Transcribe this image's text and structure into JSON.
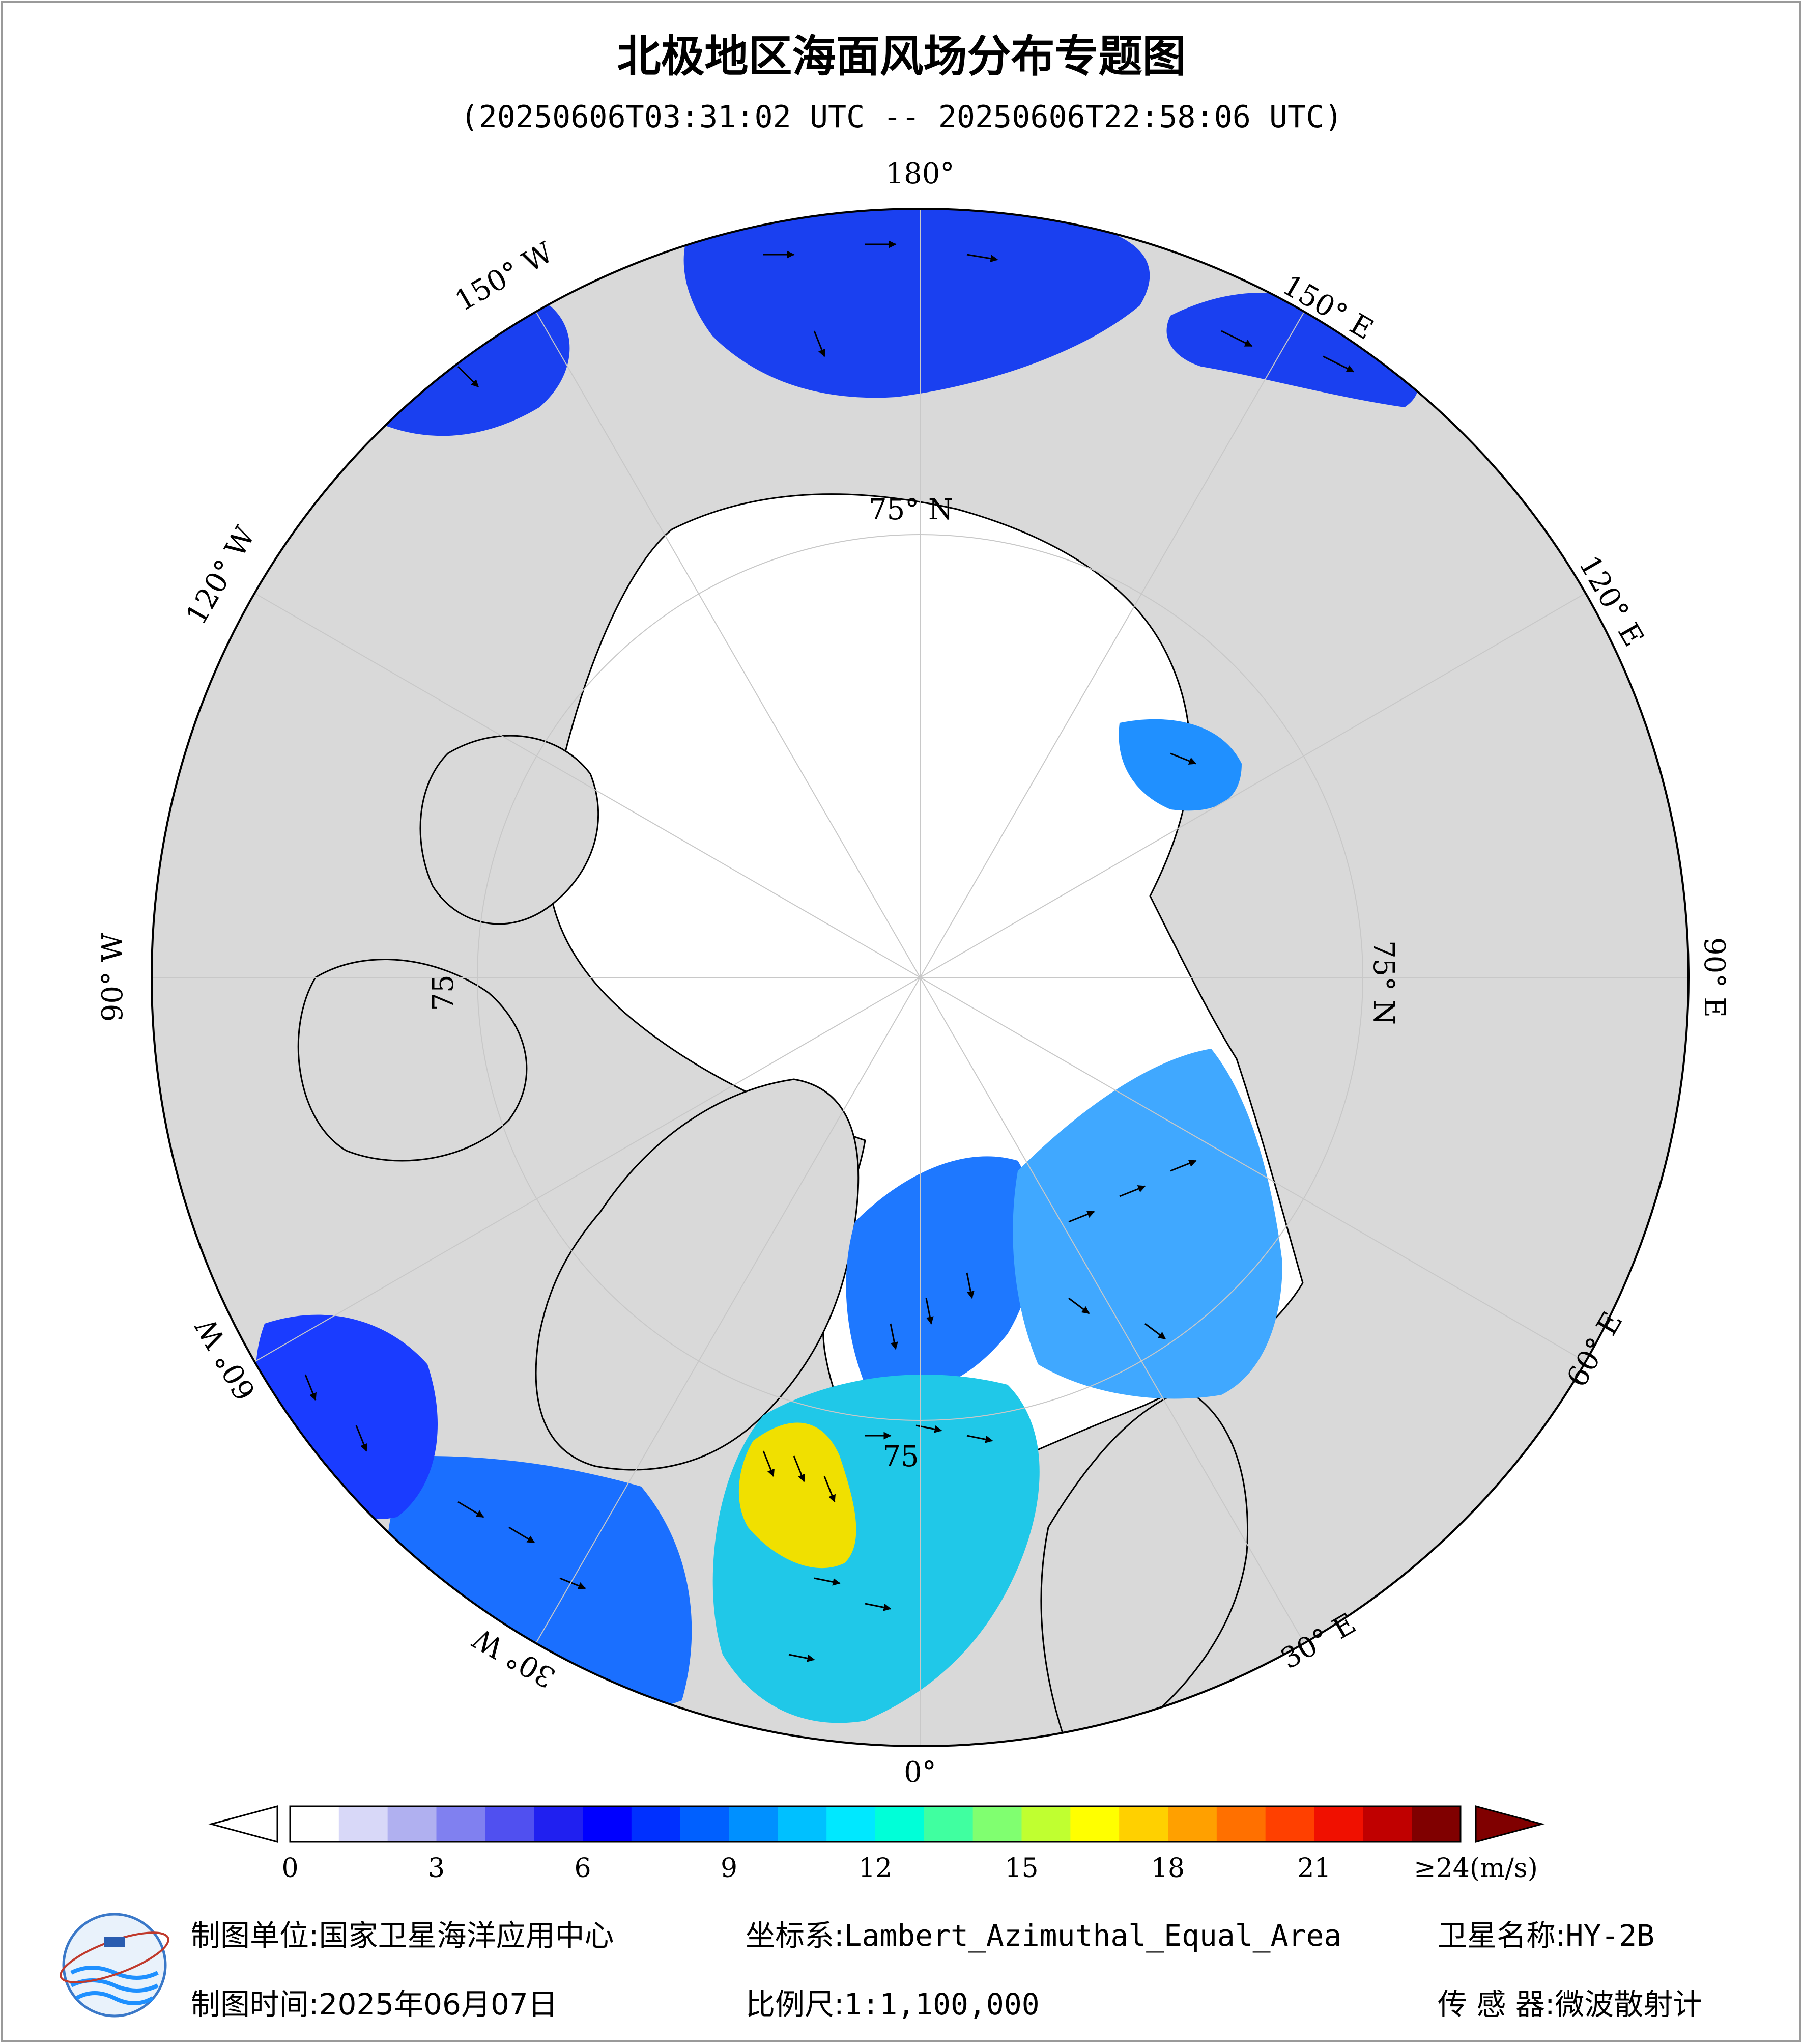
{
  "header": {
    "title": "北极地区海面风场分布专题图",
    "subtitle": "(20250606T03:31:02 UTC -- 20250606T22:58:06 UTC)"
  },
  "map": {
    "projection": "polar",
    "longitude_labels": [
      "180°",
      "150° E",
      "120° E",
      "90° E",
      "60° E",
      "30° E",
      "0°",
      "30° W",
      "60° W",
      "90° W",
      "120° W",
      "150° W"
    ],
    "latitude_labels": [
      "75° N",
      "75° N",
      "75",
      "75"
    ],
    "colors": {
      "ocean_missing": "#ffffff",
      "land": "#d9d9d9",
      "coast": "#000000",
      "arrow": "#000000"
    }
  },
  "colorbar": {
    "unit_label": "≥24(m/s)",
    "ticks": [
      "0",
      "3",
      "6",
      "9",
      "12",
      "15",
      "18",
      "21"
    ],
    "min": 0,
    "max": 24,
    "colors": [
      "#ffffff",
      "#d8d8f8",
      "#b0b0f0",
      "#8080f0",
      "#5050f0",
      "#2020f0",
      "#0000ff",
      "#0030ff",
      "#0060ff",
      "#0090ff",
      "#00c0ff",
      "#00e8ff",
      "#00ffd8",
      "#40ffa0",
      "#80ff70",
      "#c0ff30",
      "#ffff00",
      "#ffd000",
      "#ffa000",
      "#ff7000",
      "#ff4000",
      "#f01000",
      "#c00000",
      "#800000"
    ]
  },
  "footer": {
    "unit_label": "制图单位:",
    "unit_value": "国家卫星海洋应用中心",
    "coord_label": "坐标系:",
    "coord_value": "Lambert_Azimuthal_Equal_Area",
    "satellite_label": "卫星名称:",
    "satellite_value": "HY-2B",
    "date_label": "制图时间:",
    "date_value": "2025年06月07日",
    "scale_label": "比例尺:",
    "scale_value": "1:1,100,000",
    "sensor_label": "传 感 器:",
    "sensor_value": "微波散射计"
  }
}
